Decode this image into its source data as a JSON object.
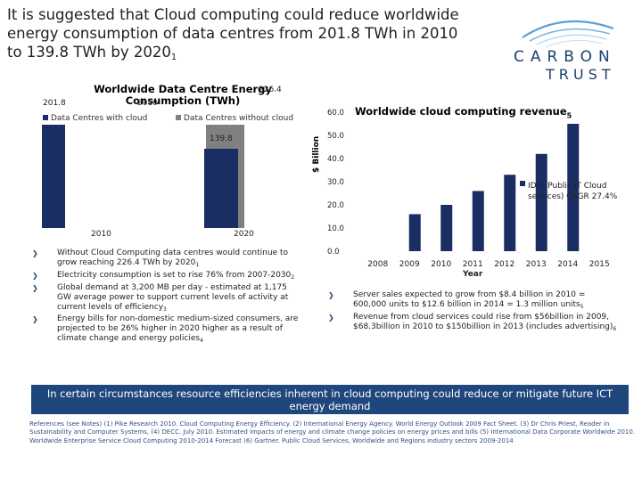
{
  "title": {
    "line1": "It is suggested that Cloud computing could reduce worldwide",
    "line2": "energy consumption of data centres from 201.8 TWh in 2010",
    "line3": "to 139.8 TWh by 2020",
    "footnote": "1"
  },
  "logo": {
    "word1": "CARBON",
    "word2": "TRUST",
    "colors": [
      "#5aa0d6",
      "#1c3f6e"
    ]
  },
  "left_chart": {
    "title_line1": "Worldwide Data Centre Energy",
    "title_line2": "Consumption (TWh)",
    "legend": [
      "Data Centres with cloud",
      "Data Centres without cloud"
    ],
    "value_labels": [
      "201.8",
      "226.4",
      "139.8"
    ],
    "overlap_label": "2010",
    "x_labels": [
      "2010",
      "2020"
    ]
  },
  "left_bullets": [
    {
      "text": "Without Cloud Computing data centres would continue to grow reaching 226.4 TWh by 2020",
      "sub": "1"
    },
    {
      "text": "Electricity consumption is set to rise 76% from 2007-2030",
      "sub": "2"
    },
    {
      "text": "Global demand at 3,200 MB per day - estimated at 1,175 GW average power to support current levels of activity at current levels of efficiency",
      "sub": "3"
    },
    {
      "text": "Energy bills for non-domestic medium-sized consumers, are projected to be 26% higher in 2020 higher as a result of climate change and energy policies",
      "sub": "4"
    }
  ],
  "chart_data": {
    "type": "bar",
    "title": "Worldwide cloud computing revenue",
    "title_footnote": "5",
    "categories": [
      "2008",
      "2009",
      "2010",
      "2011",
      "2012",
      "2013",
      "2014",
      "2015"
    ],
    "values": [
      null,
      16,
      20,
      26,
      33,
      42,
      55,
      null
    ],
    "ylabel": "$ Billion",
    "xlabel": "Year",
    "ylim": [
      0,
      60
    ],
    "yticks": [
      "0.0",
      "10.0",
      "20.0",
      "30.0",
      "40.0",
      "50.0",
      "60.0"
    ],
    "annotation": "IDC (Public IT Cloud services) CAGR 27.4%",
    "bar_color": "#1a2e63"
  },
  "right_bullets": [
    {
      "text": "Server sales expected to grow from $8.4 billion in 2010 = 600,000 units to $12.6 billion in 2014 = 1.3 million units",
      "sub": "5"
    },
    {
      "text": "Revenue from cloud services could rise from $56billion in 2009, $68.3billion in 2010 to $150billion in 2013 (includes advertising)",
      "sub": "6"
    }
  ],
  "banner": "In certain circumstances resource efficiencies inherent in cloud computing could reduce or mitigate future ICT energy demand",
  "references": "References (see Notes) (1) Pike Research 2010. Cloud Computing Energy Efficiency. (2) International Energy Agency. World Energy Outlook 2009 Fact Sheet. (3) Dr Chris Priest, Reader in Sustainability and Computer Systems, (4) DECC. July 2010. Estimated impacts of energy and climate change policies on energy prices and bills (5) International Data Corporate Worldwide 2010. Worldwide Enterprise Service Cloud Computing 2010-2014 Forecast (6) Gartner. Public Cloud Services, Worldwide and Regions industry sectors 2009-2014"
}
